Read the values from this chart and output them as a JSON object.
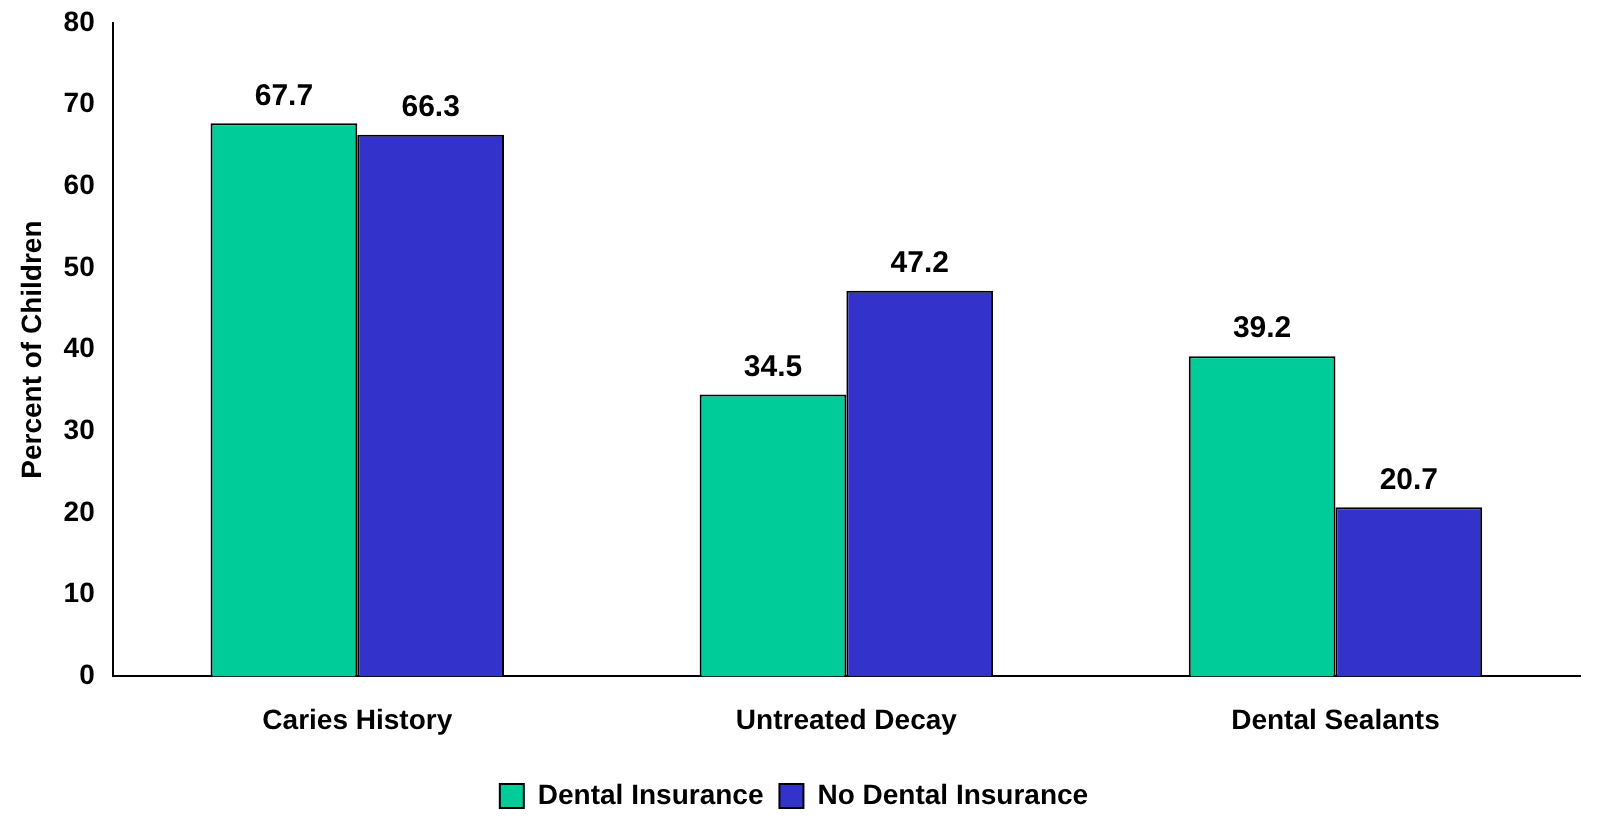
{
  "chart_data": {
    "type": "bar",
    "ylabel": "Percent of Children",
    "categories": [
      "Caries History",
      "Untreated Decay",
      "Dental Sealants"
    ],
    "series": [
      {
        "name": "Dental Insurance",
        "color": "#00cc99",
        "values": [
          67.7,
          34.5,
          39.2
        ]
      },
      {
        "name": "No Dental Insurance",
        "color": "#3333cc",
        "values": [
          66.3,
          47.2,
          20.7
        ]
      }
    ],
    "ylim": [
      0,
      80
    ],
    "yticks": [
      0,
      10,
      20,
      30,
      40,
      50,
      60,
      70,
      80
    ],
    "grid": false,
    "legend": "bottom",
    "data_labels": true
  }
}
